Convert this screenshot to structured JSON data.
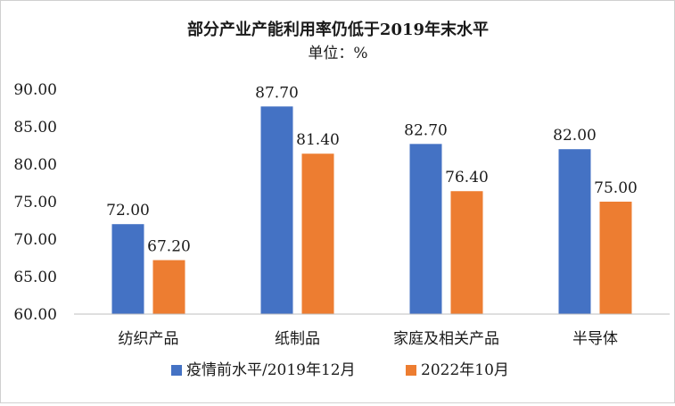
{
  "chart_data": {
    "type": "bar",
    "title": "部分产业产能利用率仍低于2019年末水平",
    "subtitle": "单位：%",
    "categories": [
      "纺织产品",
      "纸制品",
      "家庭及相关产品",
      "半导体"
    ],
    "series": [
      {
        "name": "疫情前水平/2019年12月",
        "color": "#4472C4",
        "values": [
          72.0,
          87.7,
          82.7,
          82.0
        ],
        "labels": [
          "72.00",
          "87.70",
          "82.70",
          "82.00"
        ]
      },
      {
        "name": "2022年10月",
        "color": "#ED7D31",
        "values": [
          67.2,
          81.4,
          76.4,
          75.0
        ],
        "labels": [
          "67.20",
          "81.40",
          "76.40",
          "75.00"
        ]
      }
    ],
    "ylim": [
      60,
      90
    ],
    "yticks": [
      "60.00",
      "65.00",
      "70.00",
      "75.00",
      "80.00",
      "85.00",
      "90.00"
    ],
    "legend_position": "bottom",
    "grid": false
  }
}
